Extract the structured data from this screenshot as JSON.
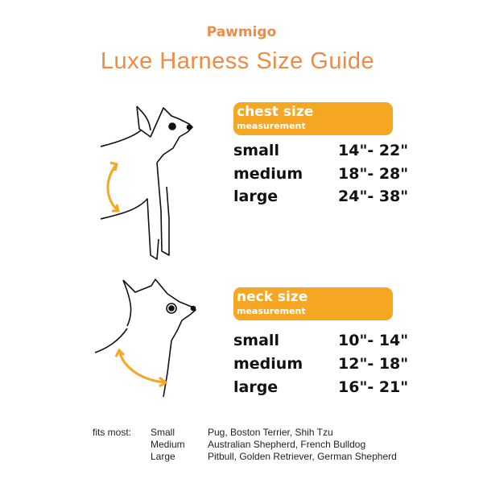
{
  "brand": "Pawmigo",
  "title": "Luxe Harness Size Guide",
  "accent_color": "#f5a623",
  "title_color": "#f08a45",
  "chest": {
    "heading": "chest size",
    "sub": "measurement",
    "rows": [
      {
        "size": "small",
        "range": "14\"- 22\""
      },
      {
        "size": "medium",
        "range": "18\"- 28\""
      },
      {
        "size": "large",
        "range": "24\"- 38\""
      }
    ]
  },
  "neck": {
    "heading": "neck size",
    "sub": "measurement",
    "rows": [
      {
        "size": "small",
        "range": "10\"- 14\""
      },
      {
        "size": "medium",
        "range": "12\"- 18\""
      },
      {
        "size": "large",
        "range": "16\"- 21\""
      }
    ]
  },
  "fits": {
    "label": "fits most:",
    "rows": [
      {
        "size": "Small",
        "breeds": "Pug, Boston Terrier, Shih Tzu"
      },
      {
        "size": "Medium",
        "breeds": "Australian Shepherd, French Bulldog"
      },
      {
        "size": "Large",
        "breeds": "Pitbull, Golden Retriever, German Shepherd"
      }
    ]
  }
}
